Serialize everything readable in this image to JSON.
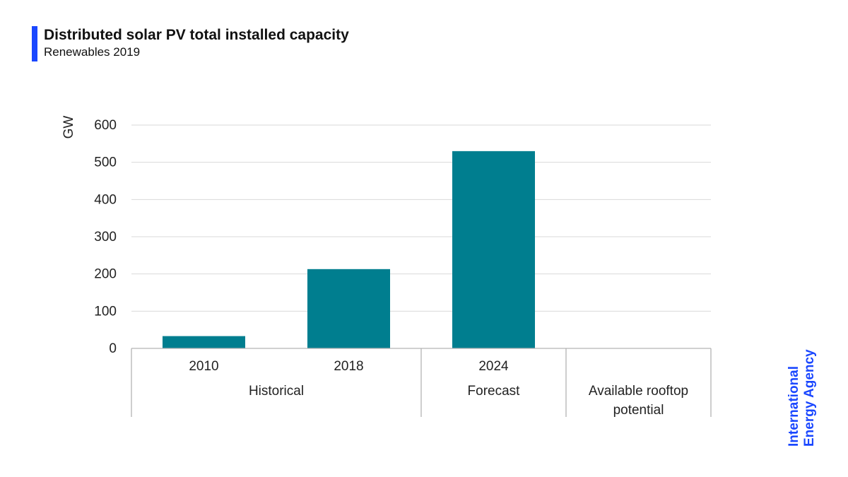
{
  "header": {
    "title": "Distributed solar PV total installed capacity",
    "subtitle": "Renewables 2019"
  },
  "brand": {
    "line1": "International",
    "line2": "Energy Agency",
    "color": "#1a47ff"
  },
  "colors": {
    "bar": "#007e8f",
    "gridline": "#d9d9d9",
    "accent": "#1a47ff"
  },
  "chart_data": {
    "type": "bar",
    "title": "Distributed solar PV total installed capacity",
    "ylabel": "GW",
    "xlabel": "",
    "ylim": [
      0,
      600
    ],
    "yticks": [
      0,
      100,
      200,
      300,
      400,
      500,
      600
    ],
    "grid": true,
    "categories": [
      "2010",
      "2018",
      "2024",
      ""
    ],
    "values": [
      33,
      213,
      530,
      null
    ],
    "groups": [
      {
        "label": "Historical",
        "categories": [
          "2010",
          "2018"
        ]
      },
      {
        "label": "Forecast",
        "categories": [
          "2024"
        ]
      },
      {
        "label": "Available rooftop potential",
        "categories": [
          ""
        ]
      }
    ]
  }
}
